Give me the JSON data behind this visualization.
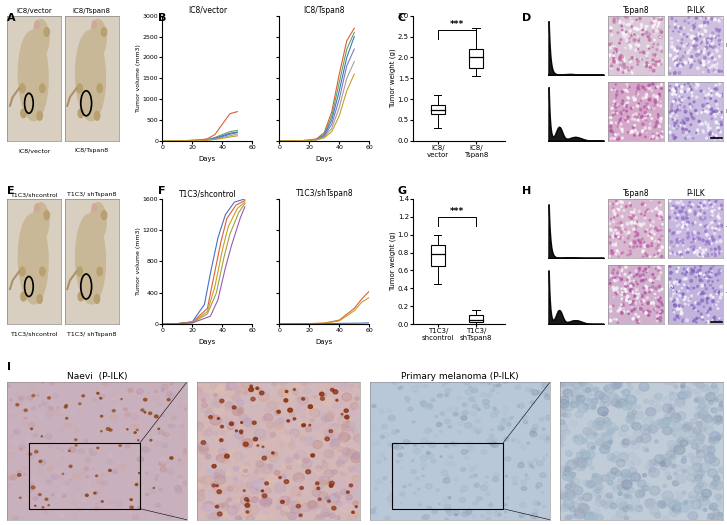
{
  "panel_B": {
    "left_title": "IC8/vector",
    "right_title": "IC8/Tspan8",
    "ylim": [
      0,
      3000
    ],
    "xlim": [
      0,
      60
    ],
    "xlabel": "Days",
    "ylabel": "Tumor volume (mm3)",
    "yticks": [
      0,
      500,
      1000,
      1500,
      2000,
      2500,
      3000
    ],
    "left_lines": [
      {
        "x": [
          0,
          15,
          20,
          25,
          30,
          35,
          40,
          45,
          50
        ],
        "y": [
          0,
          5,
          10,
          20,
          50,
          150,
          400,
          650,
          700
        ],
        "color": "#e05c3a"
      },
      {
        "x": [
          0,
          15,
          20,
          25,
          30,
          35,
          40,
          45,
          50
        ],
        "y": [
          0,
          5,
          10,
          15,
          30,
          80,
          150,
          220,
          250
        ],
        "color": "#5ba85a"
      },
      {
        "x": [
          0,
          15,
          20,
          25,
          30,
          35,
          40,
          45,
          50
        ],
        "y": [
          0,
          5,
          8,
          12,
          25,
          60,
          120,
          180,
          210
        ],
        "color": "#4472c4"
      },
      {
        "x": [
          0,
          15,
          20,
          25,
          30,
          35,
          40,
          45,
          50
        ],
        "y": [
          0,
          5,
          8,
          10,
          20,
          50,
          100,
          160,
          200
        ],
        "color": "#4472c4"
      },
      {
        "x": [
          0,
          15,
          20,
          25,
          30,
          35,
          40,
          45,
          50
        ],
        "y": [
          0,
          5,
          8,
          10,
          18,
          40,
          80,
          120,
          160
        ],
        "color": "#a0a0a0"
      },
      {
        "x": [
          0,
          15,
          20,
          25,
          30,
          35,
          40,
          45,
          50
        ],
        "y": [
          0,
          5,
          7,
          9,
          15,
          30,
          60,
          90,
          120
        ],
        "color": "#c8a020"
      }
    ],
    "right_lines": [
      {
        "x": [
          0,
          15,
          20,
          25,
          30,
          35,
          40,
          45,
          50
        ],
        "y": [
          0,
          5,
          15,
          50,
          200,
          700,
          1600,
          2400,
          2700
        ],
        "color": "#e05c3a"
      },
      {
        "x": [
          0,
          15,
          20,
          25,
          30,
          35,
          40,
          45,
          50
        ],
        "y": [
          0,
          5,
          12,
          40,
          160,
          600,
          1400,
          2200,
          2600
        ],
        "color": "#5ba85a"
      },
      {
        "x": [
          0,
          15,
          20,
          25,
          30,
          35,
          40,
          45,
          50
        ],
        "y": [
          0,
          5,
          10,
          35,
          130,
          500,
          1200,
          2000,
          2500
        ],
        "color": "#4472c4"
      },
      {
        "x": [
          0,
          15,
          20,
          25,
          30,
          35,
          40,
          45,
          50
        ],
        "y": [
          0,
          5,
          10,
          30,
          110,
          400,
          1000,
          1800,
          2200
        ],
        "color": "#7b7bc0"
      },
      {
        "x": [
          0,
          15,
          20,
          25,
          30,
          35,
          40,
          45,
          50
        ],
        "y": [
          0,
          5,
          8,
          25,
          90,
          300,
          800,
          1500,
          1900
        ],
        "color": "#a0a0a0"
      },
      {
        "x": [
          0,
          15,
          20,
          25,
          30,
          35,
          40,
          45,
          50
        ],
        "y": [
          0,
          5,
          8,
          22,
          70,
          220,
          600,
          1200,
          1600
        ],
        "color": "#c8a020"
      }
    ]
  },
  "panel_C": {
    "ylabel": "Tumor weight (g)",
    "ylim": [
      0,
      3
    ],
    "yticks": [
      0,
      0.5,
      1,
      1.5,
      2,
      2.5,
      3
    ],
    "xticklabels": [
      "IC8/\nvector",
      "IC8/\nTspan8"
    ],
    "box_vector": {
      "median": 0.75,
      "q1": 0.65,
      "q3": 0.85,
      "whislo": 0.3,
      "whishi": 1.1
    },
    "box_tspan8": {
      "median": 2.0,
      "q1": 1.75,
      "q3": 2.2,
      "whislo": 1.55,
      "whishi": 2.7
    },
    "significance": "***"
  },
  "panel_F": {
    "left_title": "T1C3/shcontrol",
    "right_title": "T1C3/shTspan8",
    "ylim_left": [
      0,
      1600
    ],
    "ylim_right": [
      0,
      1600
    ],
    "xlim": [
      0,
      60
    ],
    "xlabel": "Days",
    "ylabel": "Tumor volume (mm3)",
    "yticks_left": [
      0,
      400,
      800,
      1200,
      1600
    ],
    "yticks_right": [
      0,
      400,
      800,
      1200,
      1600
    ],
    "left_lines": [
      {
        "x": [
          0,
          10,
          20,
          28,
          32,
          37,
          42,
          48,
          55
        ],
        "y": [
          0,
          5,
          30,
          250,
          650,
          1100,
          1400,
          1560,
          1600
        ],
        "color": "#4472c4"
      },
      {
        "x": [
          0,
          10,
          20,
          30,
          34,
          39,
          43,
          49,
          55
        ],
        "y": [
          0,
          5,
          25,
          200,
          580,
          1050,
          1350,
          1520,
          1580
        ],
        "color": "#e05c3a"
      },
      {
        "x": [
          0,
          10,
          20,
          30,
          35,
          40,
          44,
          50,
          55
        ],
        "y": [
          0,
          5,
          20,
          160,
          480,
          950,
          1250,
          1480,
          1560
        ],
        "color": "#c8a020"
      },
      {
        "x": [
          0,
          10,
          20,
          30,
          36,
          41,
          45,
          51,
          55
        ],
        "y": [
          0,
          5,
          18,
          130,
          400,
          850,
          1150,
          1430,
          1540
        ],
        "color": "#a0a040"
      },
      {
        "x": [
          0,
          10,
          20,
          32,
          37,
          42,
          46,
          52,
          55
        ],
        "y": [
          0,
          5,
          15,
          100,
          310,
          720,
          1000,
          1360,
          1500
        ],
        "color": "#9b59b6"
      }
    ],
    "right_lines": [
      {
        "x": [
          0,
          10,
          20,
          30,
          40,
          50,
          55,
          60
        ],
        "y": [
          0,
          2,
          5,
          12,
          50,
          200,
          320,
          420
        ],
        "color": "#e05c3a"
      },
      {
        "x": [
          0,
          10,
          20,
          30,
          40,
          50,
          55,
          60
        ],
        "y": [
          0,
          2,
          5,
          10,
          40,
          170,
          280,
          340
        ],
        "color": "#c8a020"
      },
      {
        "x": [
          0,
          10,
          20,
          30,
          40,
          50,
          55,
          60
        ],
        "y": [
          0,
          2,
          3,
          5,
          8,
          10,
          12,
          15
        ],
        "color": "#4472c4"
      }
    ]
  },
  "panel_G": {
    "ylabel": "Tumor weight (g)",
    "ylim": [
      0,
      1.4
    ],
    "yticks": [
      0,
      0.2,
      0.4,
      0.6,
      0.8,
      1.0,
      1.2,
      1.4
    ],
    "xticklabels": [
      "T1C3/\nshcontrol",
      "T1C3/\nshTspan8"
    ],
    "box_shcontrol": {
      "median": 0.78,
      "q1": 0.65,
      "q3": 0.88,
      "whislo": 0.45,
      "whishi": 1.0
    },
    "box_shTspan8": {
      "median": 0.05,
      "q1": 0.02,
      "q3": 0.1,
      "whislo": 0.0,
      "whishi": 0.16
    },
    "significance": "***"
  },
  "panel_I_naevi_title": "Naevi  (P-ILK)",
  "panel_I_melanoma_title": "Primary melanoma (P-ILK)",
  "bg_color": "#ffffff",
  "mouse_bg_color": "#d8cfc0",
  "mouse_body_color": "#c8b898",
  "flow_peak_color": "#000000",
  "histo_D_row0_col1_bg": "#dac0d0",
  "histo_D_row0_col2_bg": "#c8b8d8",
  "histo_D_row1_col1_bg": "#d4b0cc",
  "histo_D_row1_col2_bg": "#c0b4d8",
  "naevi_wide_bg": "#c8b8c0",
  "naevi_zoom_bg": "#d0b8b8",
  "melanoma_wide_bg": "#c0ccd8",
  "melanoma_zoom_bg": "#c8d0dc"
}
